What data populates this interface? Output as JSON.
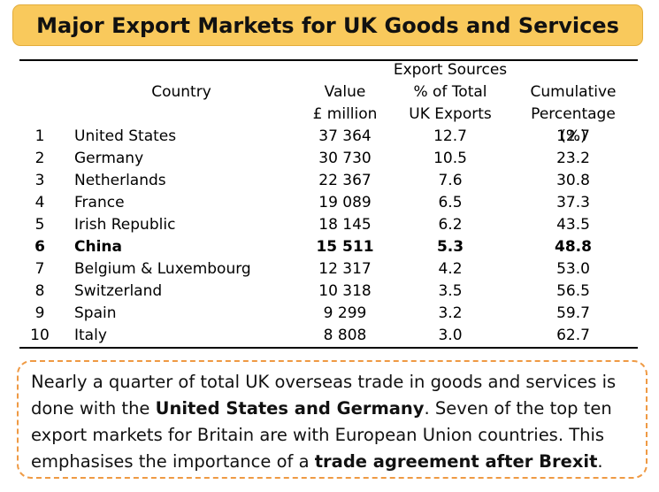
{
  "title": "Major Export Markets for UK Goods and Services",
  "headers": {
    "country": "Country",
    "value_line1": "Value",
    "value_line2": "£ million",
    "export_sources": "Export Sources",
    "pct_line1": "% of Total",
    "pct_line2": "UK Exports",
    "cum_line1": "Cumulative",
    "cum_line2": "Percentage (%)"
  },
  "rows": [
    {
      "rank": "1",
      "country": "United States",
      "value": "37 364",
      "pct": "12.7",
      "cum": "12.7"
    },
    {
      "rank": "2",
      "country": "Germany",
      "value": "30 730",
      "pct": "10.5",
      "cum": "23.2"
    },
    {
      "rank": "3",
      "country": "Netherlands",
      "value": "22 367",
      "pct": "7.6",
      "cum": "30.8"
    },
    {
      "rank": "4",
      "country": "France",
      "value": "19 089",
      "pct": "6.5",
      "cum": "37.3"
    },
    {
      "rank": "5",
      "country": "Irish Republic",
      "value": "18 145",
      "pct": "6.2",
      "cum": "43.5"
    },
    {
      "rank": "6",
      "country": "China",
      "value": "15 511",
      "pct": "5.3",
      "cum": "48.8"
    },
    {
      "rank": "7",
      "country": "Belgium & Luxembourg",
      "value": "12 317",
      "pct": "4.2",
      "cum": "53.0"
    },
    {
      "rank": "8",
      "country": "Switzerland",
      "value": "10 318",
      "pct": "3.5",
      "cum": "56.5"
    },
    {
      "rank": "9",
      "country": "Spain",
      "value": "9 299",
      "pct": "3.2",
      "cum": "59.7"
    },
    {
      "rank": "10",
      "country": "Italy",
      "value": "8 808",
      "pct": "3.0",
      "cum": "62.7"
    }
  ],
  "note": {
    "part1": "Nearly a quarter of total UK overseas trade in goods and services is done with the ",
    "bold1": "United States and Germany",
    "part2": ". Seven of the top ten export markets for Britain are with European Union countries. This emphasises the importance of a ",
    "bold2": "trade agreement after Brexit",
    "part3": "."
  }
}
